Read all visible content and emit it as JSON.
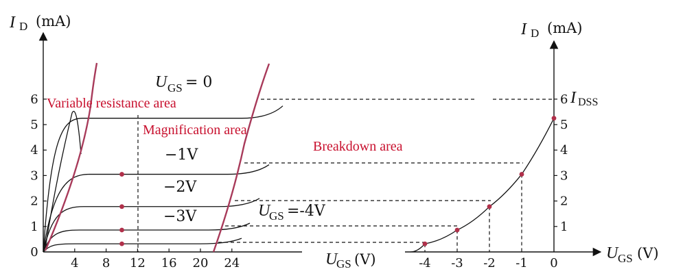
{
  "chart_data": [
    {
      "type": "line",
      "title": "",
      "ylabel_symbol": "I",
      "ylabel_sub": "D",
      "ylabel_unit": "(mA)",
      "xlabel_symbol": "U",
      "xlabel_sub": "GS",
      "xlabel_unit": "(V)",
      "x_ticks": [
        "4",
        "8",
        "12",
        "16",
        "20",
        "24"
      ],
      "y_ticks": [
        "0",
        "1",
        "2",
        "3",
        "4",
        "5",
        "6"
      ],
      "xlim": [
        0,
        28
      ],
      "ylim": [
        0,
        7
      ],
      "series": [
        {
          "name": "U_GS = 0",
          "level": 5.25
        },
        {
          "name": "-1V",
          "level": 3.05
        },
        {
          "name": "-2V",
          "level": 1.78
        },
        {
          "name": "-3V",
          "level": 0.86
        },
        {
          "name": "U_GS = -4V",
          "level": 0.32
        }
      ],
      "curve_labels": {
        "top_U": "U",
        "top_sub": "GS",
        "top_rest": " = 0",
        "m1": "−1V",
        "m2": "−2V",
        "m3": "−3V",
        "bot_U": "U",
        "bot_sub": "GS",
        "bot_rest": "=-4V"
      },
      "region_labels": {
        "variable": "Variable resistance area",
        "magnification": "Magnification area",
        "breakdown": "Breakdown area"
      },
      "marked_points": [
        {
          "x": 10,
          "y": 3.05
        },
        {
          "x": 10,
          "y": 1.78
        },
        {
          "x": 10,
          "y": 0.86
        },
        {
          "x": 10,
          "y": 0.32
        }
      ]
    },
    {
      "type": "line",
      "title": "",
      "ylabel_symbol": "I",
      "ylabel_sub": "D",
      "ylabel_unit": "(mA)",
      "xlabel_symbol": "U",
      "xlabel_sub": "GS",
      "xlabel_unit": "(V)",
      "x_ticks": [
        "-4",
        "-3",
        "-2",
        "-1",
        "0"
      ],
      "y_ticks": [
        "1",
        "2",
        "3",
        "4",
        "5",
        "6"
      ],
      "xlim": [
        -4.5,
        0
      ],
      "ylim": [
        0,
        7
      ],
      "idss_label": "I",
      "idss_sub": "DSS",
      "points": [
        {
          "x": -4,
          "y": 0.32
        },
        {
          "x": -3,
          "y": 0.86
        },
        {
          "x": -2,
          "y": 1.78
        },
        {
          "x": -1,
          "y": 3.05
        },
        {
          "x": 0,
          "y": 5.25
        }
      ]
    }
  ]
}
